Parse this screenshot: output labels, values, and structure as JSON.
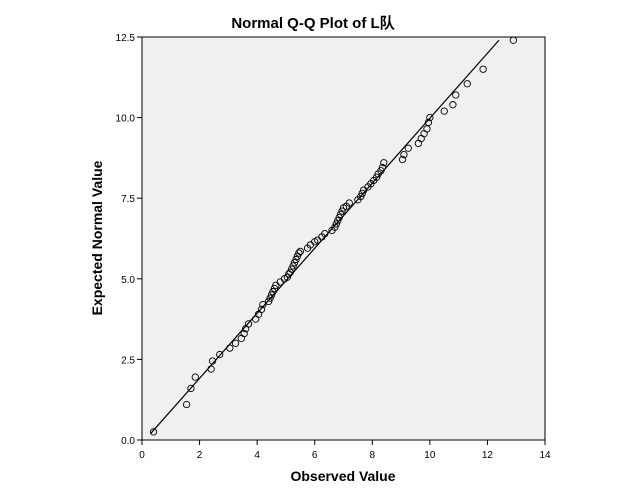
{
  "chart_data": {
    "type": "scatter",
    "title": "Normal Q-Q Plot of L队",
    "xlabel": "Observed Value",
    "ylabel": "Expected Normal Value",
    "xlim": [
      0,
      14
    ],
    "ylim": [
      0,
      12.5
    ],
    "x_ticks": [
      "0",
      "2",
      "4",
      "6",
      "8",
      "10",
      "12",
      "14"
    ],
    "y_ticks": [
      "0.0",
      "2.5",
      "5.0",
      "7.5",
      "10.0",
      "12.5"
    ],
    "grid": false,
    "legend": "none",
    "reference_line": {
      "x": [
        0.3,
        12.4
      ],
      "y": [
        0.2,
        12.4
      ]
    },
    "points": [
      {
        "x": 0.4,
        "y": 0.25
      },
      {
        "x": 1.55,
        "y": 1.1
      },
      {
        "x": 1.7,
        "y": 1.6
      },
      {
        "x": 1.85,
        "y": 1.95
      },
      {
        "x": 2.4,
        "y": 2.2
      },
      {
        "x": 2.45,
        "y": 2.45
      },
      {
        "x": 2.7,
        "y": 2.65
      },
      {
        "x": 3.05,
        "y": 2.85
      },
      {
        "x": 3.25,
        "y": 3.0
      },
      {
        "x": 3.45,
        "y": 3.15
      },
      {
        "x": 3.55,
        "y": 3.3
      },
      {
        "x": 3.6,
        "y": 3.45
      },
      {
        "x": 3.7,
        "y": 3.6
      },
      {
        "x": 3.95,
        "y": 3.75
      },
      {
        "x": 4.05,
        "y": 3.9
      },
      {
        "x": 4.15,
        "y": 4.05
      },
      {
        "x": 4.2,
        "y": 4.2
      },
      {
        "x": 4.4,
        "y": 4.3
      },
      {
        "x": 4.45,
        "y": 4.4
      },
      {
        "x": 4.5,
        "y": 4.5
      },
      {
        "x": 4.55,
        "y": 4.6
      },
      {
        "x": 4.6,
        "y": 4.7
      },
      {
        "x": 4.65,
        "y": 4.8
      },
      {
        "x": 4.8,
        "y": 4.9
      },
      {
        "x": 4.95,
        "y": 5.0
      },
      {
        "x": 5.05,
        "y": 5.05
      },
      {
        "x": 5.1,
        "y": 5.15
      },
      {
        "x": 5.15,
        "y": 5.2
      },
      {
        "x": 5.2,
        "y": 5.3
      },
      {
        "x": 5.25,
        "y": 5.4
      },
      {
        "x": 5.3,
        "y": 5.5
      },
      {
        "x": 5.35,
        "y": 5.6
      },
      {
        "x": 5.4,
        "y": 5.7
      },
      {
        "x": 5.45,
        "y": 5.8
      },
      {
        "x": 5.5,
        "y": 5.85
      },
      {
        "x": 5.75,
        "y": 5.95
      },
      {
        "x": 5.85,
        "y": 6.05
      },
      {
        "x": 6.0,
        "y": 6.15
      },
      {
        "x": 6.1,
        "y": 6.2
      },
      {
        "x": 6.25,
        "y": 6.3
      },
      {
        "x": 6.35,
        "y": 6.4
      },
      {
        "x": 6.6,
        "y": 6.5
      },
      {
        "x": 6.7,
        "y": 6.6
      },
      {
        "x": 6.75,
        "y": 6.7
      },
      {
        "x": 6.8,
        "y": 6.8
      },
      {
        "x": 6.85,
        "y": 6.9
      },
      {
        "x": 6.9,
        "y": 7.0
      },
      {
        "x": 6.95,
        "y": 7.1
      },
      {
        "x": 7.0,
        "y": 7.2
      },
      {
        "x": 7.1,
        "y": 7.25
      },
      {
        "x": 7.2,
        "y": 7.35
      },
      {
        "x": 7.5,
        "y": 7.45
      },
      {
        "x": 7.6,
        "y": 7.55
      },
      {
        "x": 7.65,
        "y": 7.65
      },
      {
        "x": 7.7,
        "y": 7.75
      },
      {
        "x": 7.85,
        "y": 7.85
      },
      {
        "x": 7.95,
        "y": 7.95
      },
      {
        "x": 8.05,
        "y": 8.05
      },
      {
        "x": 8.15,
        "y": 8.15
      },
      {
        "x": 8.2,
        "y": 8.25
      },
      {
        "x": 8.3,
        "y": 8.35
      },
      {
        "x": 8.35,
        "y": 8.45
      },
      {
        "x": 8.4,
        "y": 8.6
      },
      {
        "x": 9.05,
        "y": 8.7
      },
      {
        "x": 9.1,
        "y": 8.85
      },
      {
        "x": 9.25,
        "y": 9.05
      },
      {
        "x": 9.6,
        "y": 9.2
      },
      {
        "x": 9.7,
        "y": 9.35
      },
      {
        "x": 9.8,
        "y": 9.5
      },
      {
        "x": 9.9,
        "y": 9.65
      },
      {
        "x": 9.95,
        "y": 9.85
      },
      {
        "x": 10.0,
        "y": 10.0
      },
      {
        "x": 10.5,
        "y": 10.2
      },
      {
        "x": 10.8,
        "y": 10.4
      },
      {
        "x": 10.9,
        "y": 10.7
      },
      {
        "x": 11.3,
        "y": 11.05
      },
      {
        "x": 11.85,
        "y": 11.5
      },
      {
        "x": 12.9,
        "y": 12.4
      }
    ]
  }
}
